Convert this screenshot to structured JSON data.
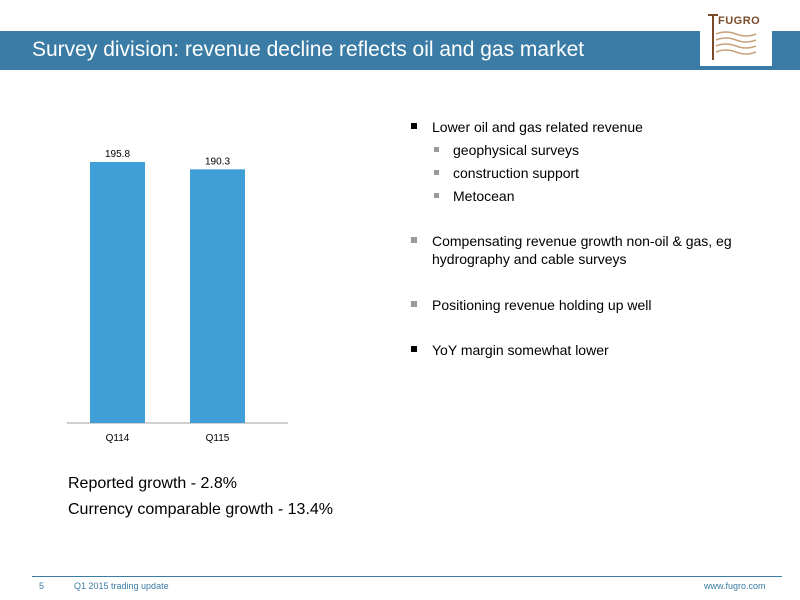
{
  "header": {
    "title": "Survey division: revenue decline reflects oil and gas market",
    "logo_text": "FUGRO",
    "bar_color": "#3a7ca5"
  },
  "chart_data": {
    "type": "bar",
    "categories": [
      "Q114",
      "Q115"
    ],
    "values": [
      195.8,
      190.3
    ],
    "value_labels": [
      "195.8",
      "190.3"
    ],
    "bar_color": "#3f9fd6",
    "title": "",
    "xlabel": "",
    "ylabel": "",
    "ylim": [
      0,
      195.8
    ],
    "grid": false
  },
  "bullets": {
    "main1": "Lower oil and gas related revenue",
    "sub": [
      "geophysical surveys",
      "construction support",
      "Metocean"
    ],
    "main2": "Compensating revenue growth non-oil & gas, eg hydrography and cable surveys",
    "main3": "Positioning revenue holding up well",
    "main4": "YoY margin somewhat lower"
  },
  "growth": {
    "reported": "Reported growth - 2.8%",
    "currency": "Currency comparable growth - 13.4%"
  },
  "footer": {
    "page_number": "5",
    "doc_title": "Q1 2015 trading update",
    "website": "www.fugro.com"
  }
}
